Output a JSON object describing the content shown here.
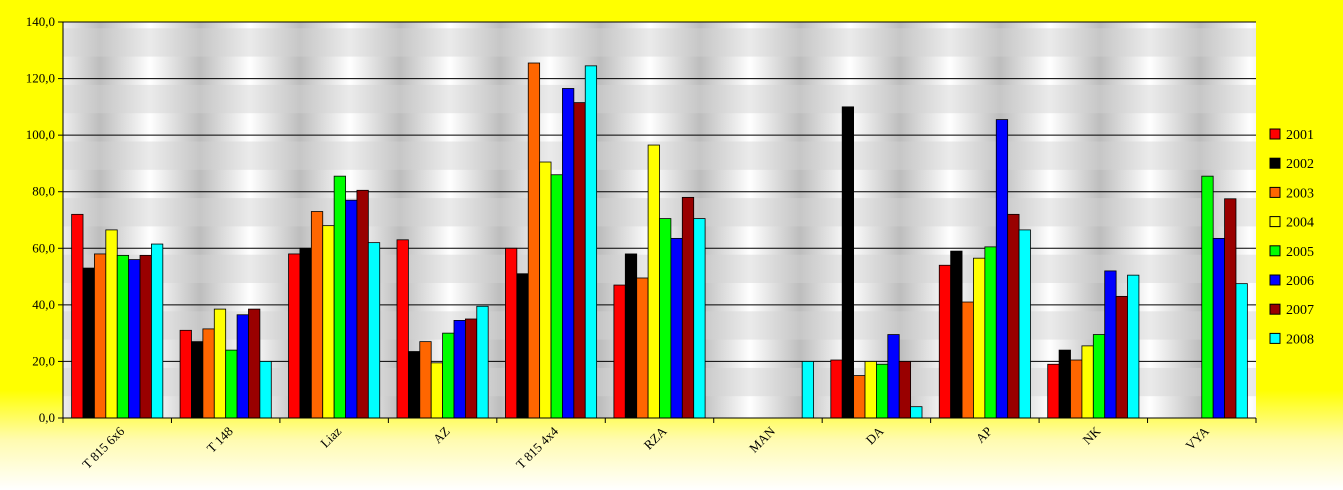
{
  "chart_data": {
    "type": "bar",
    "title": "",
    "xlabel": "",
    "ylabel": "",
    "ylim": [
      0,
      140
    ],
    "y_ticks": [
      "0,0",
      "20,0",
      "40,0",
      "60,0",
      "80,0",
      "100,0",
      "120,0",
      "140,0"
    ],
    "grid": true,
    "legend_position": "right",
    "categories": [
      "T 815 6x6",
      "T 148",
      "Liaz",
      "AZ",
      "T 815 4x4",
      "RZA",
      "MAN",
      "DA",
      "AP",
      "NK",
      "VYA"
    ],
    "series": [
      {
        "name": "2001",
        "color": "#ff0000",
        "values": [
          72,
          31,
          58,
          63,
          60,
          47,
          null,
          20.5,
          54,
          19,
          null
        ]
      },
      {
        "name": "2002",
        "color": "#000000",
        "values": [
          53,
          27,
          60,
          23.5,
          51,
          58,
          null,
          110,
          59,
          24,
          null
        ]
      },
      {
        "name": "2003",
        "color": "#ff6600",
        "values": [
          58,
          31.5,
          73,
          27,
          125.5,
          49.5,
          null,
          15,
          41,
          20.5,
          null
        ]
      },
      {
        "name": "2004",
        "color": "#ffff00",
        "values": [
          66.5,
          38.5,
          68,
          19.5,
          90.5,
          96.5,
          null,
          20,
          56.5,
          25.5,
          null
        ]
      },
      {
        "name": "2005",
        "color": "#00ff00",
        "values": [
          57.5,
          24,
          85.5,
          30,
          86,
          70.5,
          null,
          19,
          60.5,
          29.5,
          85.5
        ]
      },
      {
        "name": "2006",
        "color": "#0000ff",
        "values": [
          56,
          36.5,
          77,
          34.5,
          116.5,
          63.5,
          null,
          29.5,
          105.5,
          52,
          63.5
        ]
      },
      {
        "name": "2007",
        "color": "#990000",
        "values": [
          57.5,
          38.5,
          80.5,
          35,
          111.5,
          78,
          null,
          20,
          72,
          43,
          77.5
        ]
      },
      {
        "name": "2008",
        "color": "#00ffff",
        "values": [
          61.5,
          20,
          62,
          39.5,
          124.5,
          70.5,
          20,
          4,
          66.5,
          50.5,
          47.5
        ]
      }
    ]
  }
}
